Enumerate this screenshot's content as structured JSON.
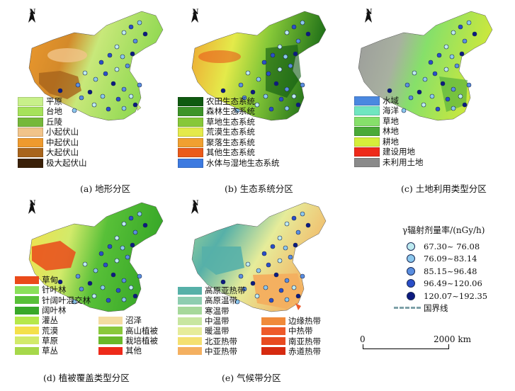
{
  "north_label": "N",
  "panels": [
    {
      "caption": "(a) 地形分区",
      "legend": [
        {
          "label": "平原",
          "color": "#c8f08a"
        },
        {
          "label": "台地",
          "color": "#a6e25a"
        },
        {
          "label": "丘陵",
          "color": "#76b83a"
        },
        {
          "label": "小起伏山",
          "color": "#f1c48a"
        },
        {
          "label": "中起伏山",
          "color": "#ee9a2e"
        },
        {
          "label": "大起伏山",
          "color": "#a8641c"
        },
        {
          "label": "极大起伏山",
          "color": "#3a2008"
        }
      ]
    },
    {
      "caption": "(b) 生态系统分区",
      "legend": [
        {
          "label": "农田生态系统",
          "color": "#0f5a10"
        },
        {
          "label": "森林生态系统",
          "color": "#3d9428"
        },
        {
          "label": "草地生态系统",
          "color": "#86c838"
        },
        {
          "label": "荒漠生态系统",
          "color": "#e4ea4a"
        },
        {
          "label": "聚落生态系统",
          "color": "#f0a030"
        },
        {
          "label": "其他生态系统",
          "color": "#ea5a1a"
        },
        {
          "label": "水体与湿地生态系统",
          "color": "#3d7ae0"
        }
      ]
    },
    {
      "caption": "(c) 土地利用类型分区",
      "legend": [
        {
          "label": "水域",
          "color": "#4a88e0"
        },
        {
          "label": "海洋",
          "color": "#70e6c0"
        },
        {
          "label": "草地",
          "color": "#86e06a"
        },
        {
          "label": "林地",
          "color": "#4aaa38"
        },
        {
          "label": "耕地",
          "color": "#d6ee3a"
        },
        {
          "label": "建设用地",
          "color": "#ee2a1a"
        },
        {
          "label": "未利用土地",
          "color": "#8a8a8a"
        }
      ]
    },
    {
      "caption": "(d) 植被覆盖类型分区",
      "legend": [
        {
          "label": "草甸",
          "color": "#ea4a1a"
        },
        {
          "label": "针叶林",
          "color": "#8ae05a"
        },
        {
          "label": "针阔叶混交林",
          "color": "#58c038"
        },
        {
          "label": "阔叶林",
          "color": "#38a828"
        },
        {
          "label": "灌丛",
          "color": "#b6e84a"
        },
        {
          "label": "沼泽",
          "color": "#f4dca0"
        },
        {
          "label": "荒漠",
          "color": "#f4e04a"
        },
        {
          "label": "高山植被",
          "color": "#8ac83a"
        },
        {
          "label": "草原",
          "color": "#d2ea6a"
        },
        {
          "label": "栽培植被",
          "color": "#6ab82a"
        },
        {
          "label": "草丛",
          "color": "#a6d84a"
        },
        {
          "label": "其他",
          "color": "#ee2a1a"
        }
      ]
    },
    {
      "caption": "(e) 气候带分区",
      "legend": [
        {
          "label": "高原亚热带",
          "color": "#56b0a8"
        },
        {
          "label": "边缘热带",
          "color": "#f08a3a"
        },
        {
          "label": "高原温带",
          "color": "#8ecdb0"
        },
        {
          "label": "中热带",
          "color": "#ee5a2a"
        },
        {
          "label": "寒温带",
          "color": "#a6d89a"
        },
        {
          "label": "南亚热带",
          "color": "#e84a20"
        },
        {
          "label": "中温带",
          "color": "#c8e6a0"
        },
        {
          "label": "赤道热带",
          "color": "#d62a10"
        },
        {
          "label": "暖温带",
          "color": "#e6ec9a"
        },
        {
          "label": "北亚热带",
          "color": "#f4e070"
        },
        {
          "label": "中亚热带",
          "color": "#f4b060"
        }
      ]
    }
  ],
  "dose_legend": {
    "title": "γ辐射剂量率/(nGy/h)",
    "classes": [
      {
        "label": "67.30~ 76.08",
        "color": "#bdeaf0"
      },
      {
        "label": "76.09~83.14",
        "color": "#8cc8ee"
      },
      {
        "label": "85.15~96.48",
        "color": "#5a8ee0"
      },
      {
        "label": "96.49~120.06",
        "color": "#2a4ec8"
      },
      {
        "label": "120.07~192.35",
        "color": "#0c1a80"
      }
    ],
    "border_label": "国界线"
  },
  "scale_bar": {
    "start": "0",
    "end": "2000 km"
  }
}
